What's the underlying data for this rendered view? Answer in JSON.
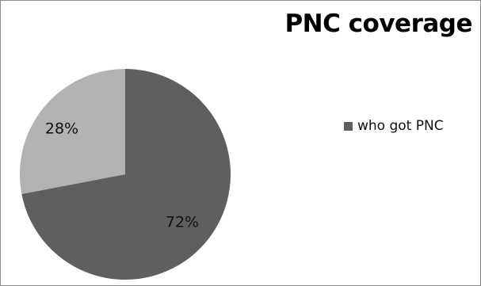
{
  "chart_data": {
    "type": "pie",
    "title": "PNC coverage",
    "slices": [
      {
        "label": "who got PNC",
        "value": 72,
        "display": "72%",
        "color": "#5f5f5f"
      },
      {
        "label": "",
        "value": 28,
        "display": "28%",
        "color": "#b2b2b2"
      }
    ],
    "start": "12 o'clock",
    "direction": "clockwise",
    "legend": {
      "placement": "right",
      "entries": [
        "who got PNC"
      ]
    }
  }
}
